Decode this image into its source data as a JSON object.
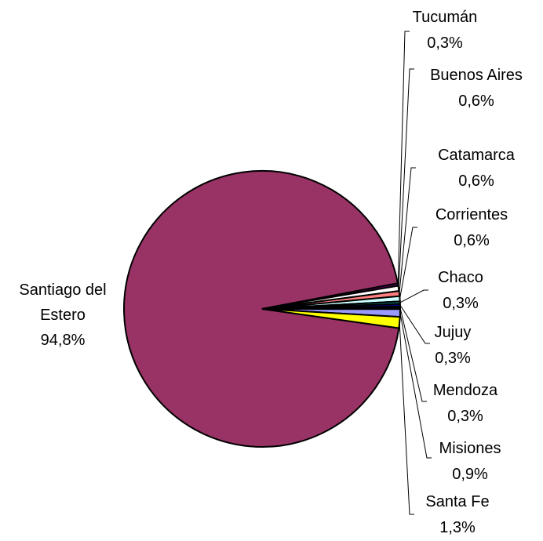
{
  "chart_data": {
    "type": "pie",
    "categories": [
      "Santiago del Estero",
      "Tucumán",
      "Buenos Aires",
      "Catamarca",
      "Corrientes",
      "Chaco",
      "Jujuy",
      "Mendoza",
      "Misiones",
      "Santa Fe"
    ],
    "values": [
      94.8,
      0.3,
      0.6,
      0.6,
      0.6,
      0.3,
      0.3,
      0.3,
      0.9,
      1.3
    ],
    "value_labels": [
      "94,8%",
      "0,3%",
      "0,6%",
      "0,6%",
      "0,6%",
      "0,3%",
      "0,3%",
      "0,3%",
      "0,9%",
      "1,3%"
    ],
    "colors": [
      "#993366",
      "#660066",
      "#ffffff",
      "#ff8080",
      "#ccffff",
      "#008080",
      "#000080",
      "#000000",
      "#9999ff",
      "#ffff00"
    ]
  }
}
